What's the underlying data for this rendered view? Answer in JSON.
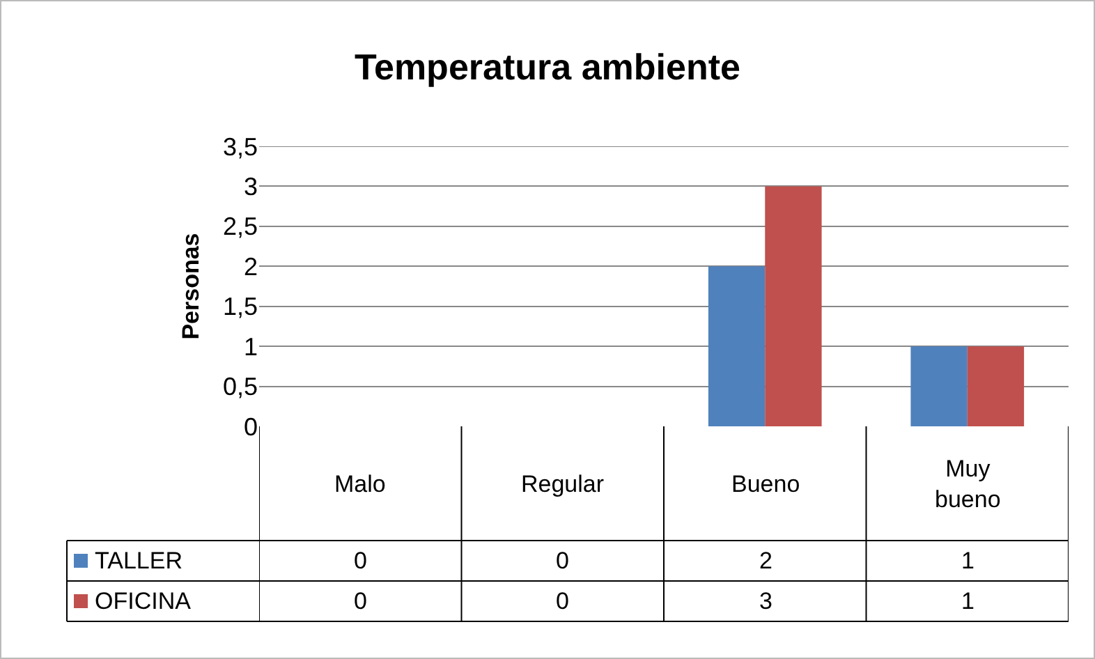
{
  "chart_data": {
    "type": "bar",
    "title": "Temperatura ambiente",
    "ylabel": "Personas",
    "categories": [
      "Malo",
      "Regular",
      "Bueno",
      "Muy bueno"
    ],
    "series": [
      {
        "name": "TALLER",
        "color": "#4f81bd",
        "values": [
          0,
          0,
          2,
          1
        ]
      },
      {
        "name": "OFICINA",
        "color": "#c0504d",
        "values": [
          0,
          0,
          3,
          1
        ]
      }
    ],
    "ylim": [
      0,
      3.5
    ],
    "yticks": [
      0,
      {
        "value": 0.5,
        "label": "0,5"
      },
      1,
      {
        "value": 1.5,
        "label": "1,5"
      },
      2,
      {
        "value": 2.5,
        "label": "2,5"
      },
      3,
      {
        "value": 3.5,
        "label": "3,5"
      }
    ],
    "grid": "y",
    "legend": "bottom left",
    "data_labels": true
  }
}
